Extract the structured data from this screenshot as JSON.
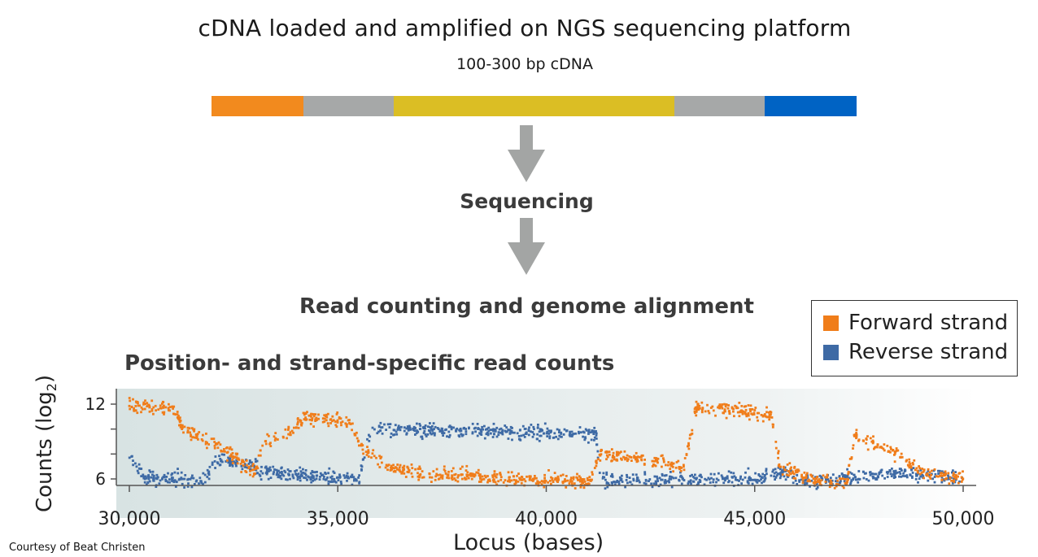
{
  "header": {
    "title": "cDNA loaded and amplified on NGS sequencing platform",
    "subtitle": "100-300 bp cDNA"
  },
  "cdna_bar": {
    "segments": [
      {
        "color": "#f28a1e",
        "fraction": 0.143
      },
      {
        "color": "#a6a8a8",
        "fraction": 0.139
      },
      {
        "color": "#dbbe24",
        "fraction": 0.436
      },
      {
        "color": "#a6a8a8",
        "fraction": 0.14
      },
      {
        "color": "#0063c4",
        "fraction": 0.142
      }
    ]
  },
  "steps": {
    "sequencing": "Sequencing",
    "alignment": "Read counting and genome alignment"
  },
  "plot_title": "Position- and strand-specific read counts",
  "legend": {
    "forward": {
      "label": "Forward strand",
      "color": "#f07d1a"
    },
    "reverse": {
      "label": "Reverse strand",
      "color": "#3e6aa5"
    }
  },
  "credit": "Courtesy of Beat Christen",
  "chart_data": {
    "type": "scatter",
    "ylabel_main": "Counts (log",
    "ylabel_sub": "2",
    "ylabel_close": ")",
    "xlabel": "Locus (bases)",
    "xlim": [
      30000,
      50000
    ],
    "ylim": [
      5,
      13
    ],
    "xticks": [
      30000,
      35000,
      40000,
      45000,
      50000
    ],
    "xtick_labels": [
      "30,000",
      "35,000",
      "40,000",
      "45,000",
      "50,000"
    ],
    "yticks": [
      6,
      8,
      10,
      12
    ],
    "ytick_labels": [
      {
        "value": 6,
        "label": "6"
      },
      {
        "value": 8,
        "label": ""
      },
      {
        "value": 10,
        "label": ""
      },
      {
        "value": 12,
        "label": "12"
      }
    ],
    "series": [
      {
        "name": "Forward strand",
        "color": "#f07d1a",
        "level_profile": [
          [
            30000,
            12.0
          ],
          [
            31100,
            11.6
          ],
          [
            31300,
            9.8
          ],
          [
            32000,
            9.0
          ],
          [
            32600,
            7.5
          ],
          [
            33000,
            6.5
          ],
          [
            33200,
            8.8
          ],
          [
            33900,
            9.8
          ],
          [
            34200,
            11.0
          ],
          [
            35300,
            10.5
          ],
          [
            35600,
            8.5
          ],
          [
            36200,
            7.0
          ],
          [
            37000,
            6.4
          ],
          [
            41000,
            5.8
          ],
          [
            41300,
            8.0
          ],
          [
            43300,
            7.0
          ],
          [
            43600,
            11.8
          ],
          [
            45400,
            11.2
          ],
          [
            45600,
            7.0
          ],
          [
            46300,
            6.0
          ],
          [
            47200,
            5.6
          ],
          [
            47400,
            9.5
          ],
          [
            48400,
            8.0
          ],
          [
            49000,
            6.5
          ],
          [
            50000,
            6.0
          ]
        ]
      },
      {
        "name": "Reverse strand",
        "color": "#3e6aa5",
        "level_profile": [
          [
            30000,
            8.0
          ],
          [
            30400,
            6.0
          ],
          [
            31800,
            6.0
          ],
          [
            32100,
            7.5
          ],
          [
            33000,
            7.0
          ],
          [
            33300,
            6.5
          ],
          [
            35500,
            6.0
          ],
          [
            35800,
            10.0
          ],
          [
            41200,
            9.6
          ],
          [
            41300,
            5.9
          ],
          [
            45000,
            6.0
          ],
          [
            45600,
            6.5
          ],
          [
            46200,
            5.8
          ],
          [
            47000,
            6.0
          ],
          [
            48500,
            6.5
          ],
          [
            49500,
            6.2
          ],
          [
            50000,
            5.9
          ]
        ]
      }
    ]
  }
}
